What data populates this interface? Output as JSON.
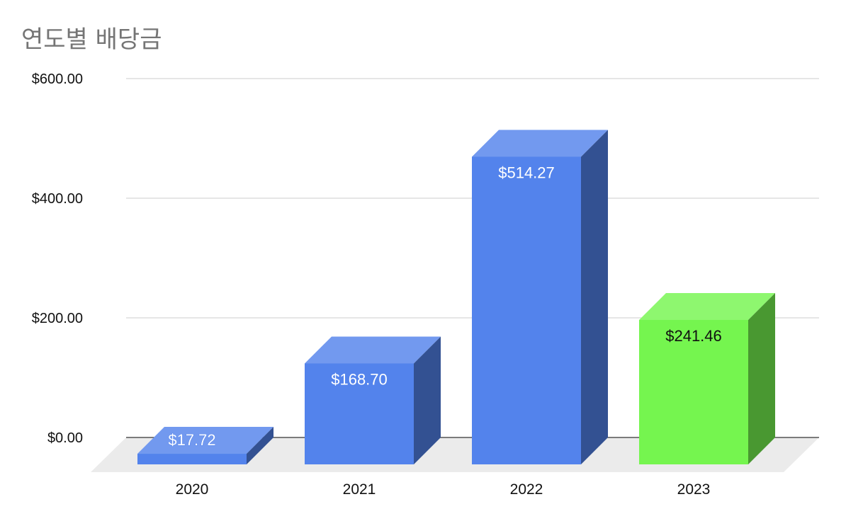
{
  "chart_data": {
    "type": "bar",
    "title": "연도별 배당금",
    "categories": [
      "2020",
      "2021",
      "2022",
      "2023"
    ],
    "values": [
      17.72,
      168.7,
      514.27,
      241.46
    ],
    "data_labels": [
      "$17.72",
      "$168.70",
      "$514.27",
      "$241.46"
    ],
    "bar_colors": [
      "#5383EC",
      "#5383EC",
      "#5383EC",
      "#75F54F"
    ],
    "data_label_colors": [
      "#FFFFFF",
      "#FFFFFF",
      "#FFFFFF",
      "#111111"
    ],
    "yticks": [
      {
        "value": 0,
        "label": "$0.00"
      },
      {
        "value": 200,
        "label": "$200.00"
      },
      {
        "value": 400,
        "label": "$400.00"
      },
      {
        "value": 600,
        "label": "$600.00"
      }
    ],
    "ylim": [
      0,
      600
    ],
    "xlabel": "",
    "ylabel": "",
    "grid": true,
    "style": "3d",
    "legend": "none"
  }
}
